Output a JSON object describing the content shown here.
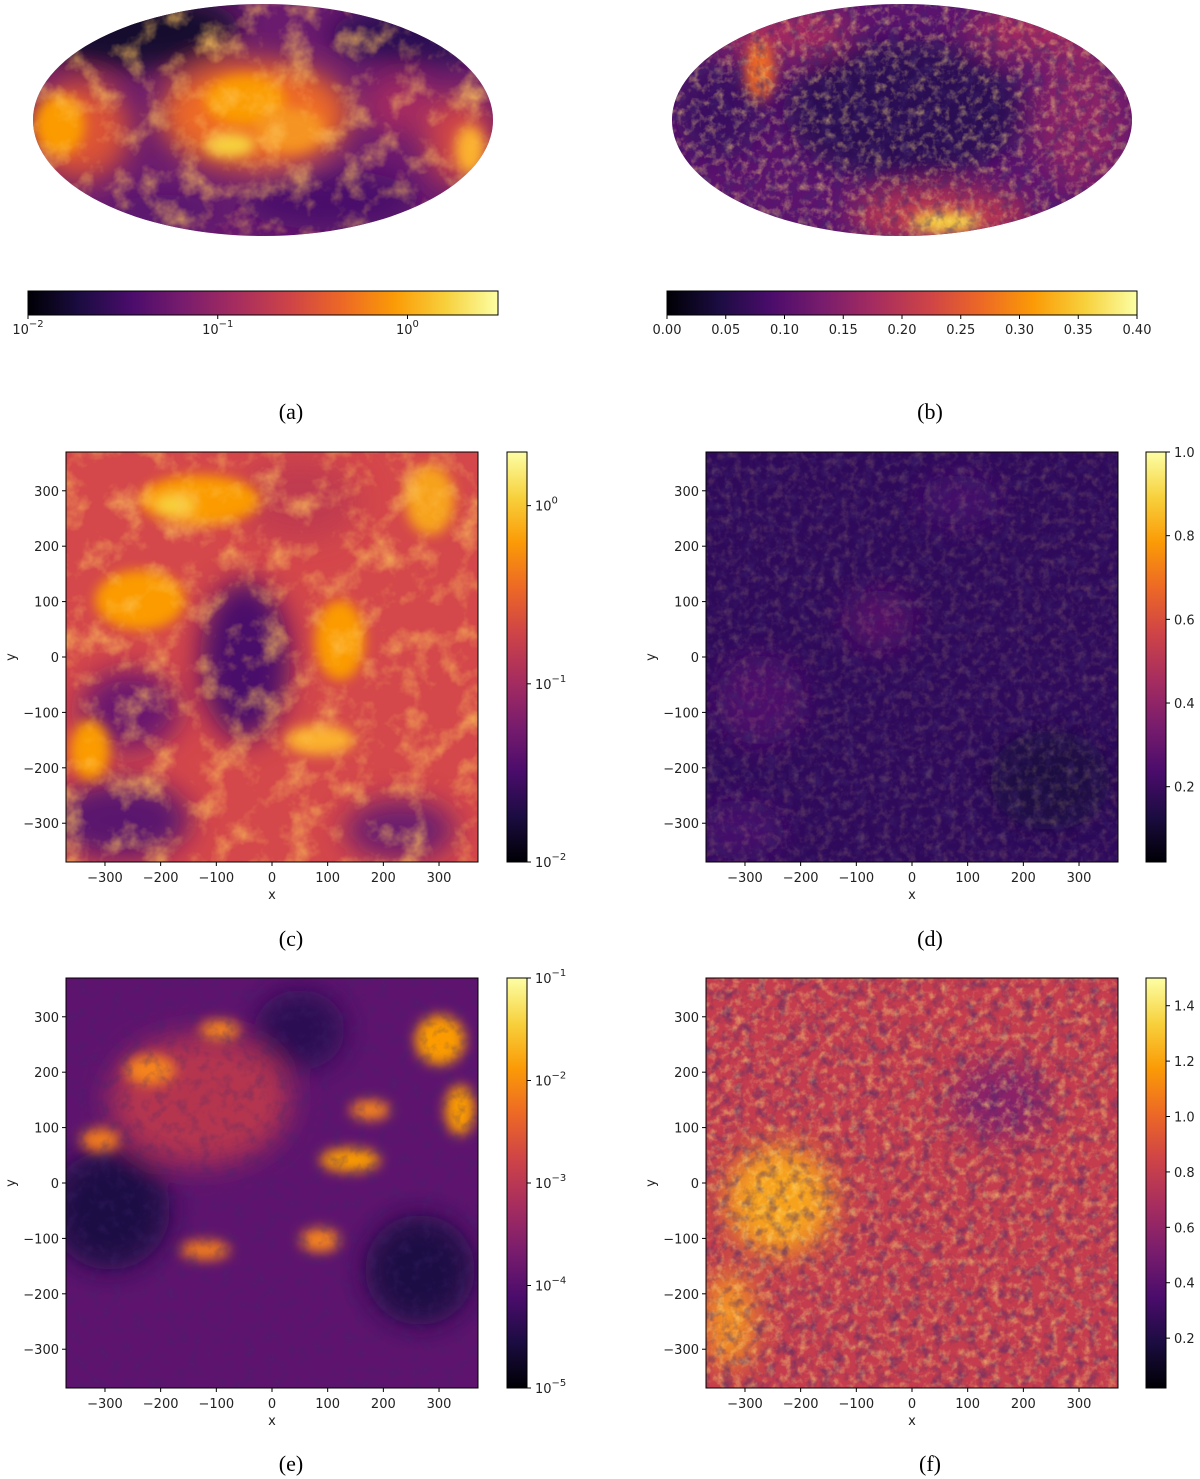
{
  "colormap": "inferno",
  "colormap_stops": [
    "#000004",
    "#1b0c41",
    "#4a0c6b",
    "#781c6d",
    "#a52c60",
    "#cf4446",
    "#ed6925",
    "#fb9b06",
    "#f7d13d",
    "#fcffa4"
  ],
  "chart_data": [
    {
      "type": "heatmap",
      "panel": "(a)",
      "projection": "mollweide",
      "colorbar": {
        "orientation": "horizontal",
        "scale": "log",
        "range": [
          0.01,
          3
        ],
        "ticks": [
          {
            "base": "10",
            "exp": "−2",
            "value": 0.01
          },
          {
            "base": "10",
            "exp": "−1",
            "value": 0.1
          },
          {
            "base": "10",
            "exp": "0",
            "value": 1
          }
        ]
      }
    },
    {
      "type": "heatmap",
      "panel": "(b)",
      "projection": "mollweide",
      "colorbar": {
        "orientation": "horizontal",
        "scale": "linear",
        "range": [
          0,
          0.4
        ],
        "ticks": [
          "0.00",
          "0.05",
          "0.10",
          "0.15",
          "0.20",
          "0.25",
          "0.30",
          "0.35",
          "0.40"
        ]
      }
    },
    {
      "type": "heatmap",
      "panel": "(c)",
      "xlabel": "x",
      "ylabel": "y",
      "xlim": [
        -370,
        370
      ],
      "ylim": [
        -370,
        370
      ],
      "xticks": [
        "−300",
        "−200",
        "−100",
        "0",
        "100",
        "200",
        "300"
      ],
      "yticks": [
        "300",
        "200",
        "100",
        "0",
        "−100",
        "−200",
        "−300"
      ],
      "colorbar": {
        "orientation": "vertical",
        "scale": "log",
        "range": [
          0.01,
          2
        ],
        "ticks": [
          {
            "base": "10",
            "exp": "0",
            "value": 1
          },
          {
            "base": "10",
            "exp": "−1",
            "value": 0.1
          },
          {
            "base": "10",
            "exp": "−2",
            "value": 0.01
          }
        ]
      }
    },
    {
      "type": "heatmap",
      "panel": "(d)",
      "xlabel": "x",
      "ylabel": "y",
      "xlim": [
        -370,
        370
      ],
      "ylim": [
        -370,
        370
      ],
      "xticks": [
        "−300",
        "−200",
        "−100",
        "0",
        "100",
        "200",
        "300"
      ],
      "yticks": [
        "300",
        "200",
        "100",
        "0",
        "−100",
        "−200",
        "−300"
      ],
      "colorbar": {
        "orientation": "vertical",
        "scale": "linear",
        "range": [
          0.02,
          1.0
        ],
        "ticks": [
          "1.0",
          "0.8",
          "0.6",
          "0.4",
          "0.2"
        ]
      }
    },
    {
      "type": "heatmap",
      "panel": "(e)",
      "xlabel": "x",
      "ylabel": "y",
      "xlim": [
        -370,
        370
      ],
      "ylim": [
        -370,
        370
      ],
      "xticks": [
        "−300",
        "−200",
        "−100",
        "0",
        "100",
        "200",
        "300"
      ],
      "yticks": [
        "300",
        "200",
        "100",
        "0",
        "−100",
        "−200",
        "−300"
      ],
      "colorbar": {
        "orientation": "vertical",
        "scale": "log",
        "range": [
          1e-05,
          0.1
        ],
        "ticks": [
          {
            "base": "10",
            "exp": "−1",
            "value": 0.1
          },
          {
            "base": "10",
            "exp": "−2",
            "value": 0.01
          },
          {
            "base": "10",
            "exp": "−3",
            "value": 0.001
          },
          {
            "base": "10",
            "exp": "−4",
            "value": 0.0001
          },
          {
            "base": "10",
            "exp": "−5",
            "value": 1e-05
          }
        ]
      }
    },
    {
      "type": "heatmap",
      "panel": "(f)",
      "xlabel": "x",
      "ylabel": "y",
      "xlim": [
        -370,
        370
      ],
      "ylim": [
        -370,
        370
      ],
      "xticks": [
        "−300",
        "−200",
        "−100",
        "0",
        "100",
        "200",
        "300"
      ],
      "yticks": [
        "300",
        "200",
        "100",
        "0",
        "−100",
        "−200",
        "−300"
      ],
      "colorbar": {
        "orientation": "vertical",
        "scale": "linear",
        "range": [
          0.02,
          1.5
        ],
        "ticks": [
          "1.4",
          "1.2",
          "1.0",
          "0.8",
          "0.6",
          "0.4",
          "0.2"
        ]
      }
    }
  ]
}
